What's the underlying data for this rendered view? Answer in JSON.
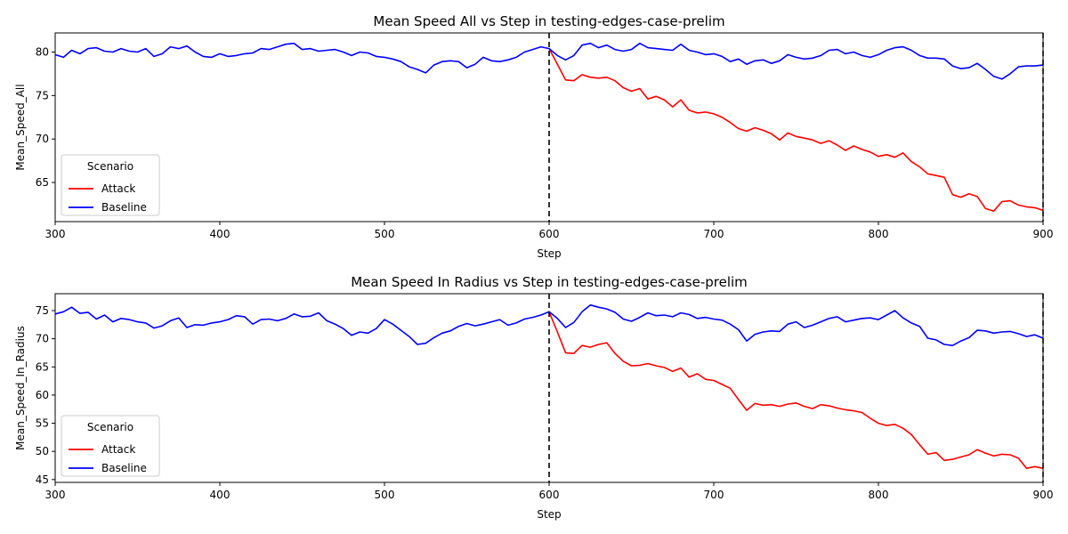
{
  "chart_data": [
    {
      "type": "line",
      "title": "Mean Speed All vs Step in testing-edges-case-prelim",
      "xlabel": "Step",
      "ylabel": "Mean_Speed_All",
      "xlim": [
        300,
        900
      ],
      "ylim": [
        60.5,
        82.2
      ],
      "xticks": [
        300,
        400,
        500,
        600,
        700,
        800,
        900
      ],
      "yticks": [
        65,
        70,
        75,
        80
      ],
      "vlines": [
        600,
        900
      ],
      "legend": {
        "title": "Scenario",
        "placement": "lower-left"
      },
      "series": [
        {
          "name": "Attack",
          "color": "#ff0000",
          "x": [
            600,
            605,
            610,
            615,
            620,
            625,
            630,
            635,
            640,
            645,
            650,
            655,
            660,
            665,
            670,
            675,
            680,
            685,
            690,
            695,
            700,
            705,
            710,
            715,
            720,
            725,
            730,
            735,
            740,
            745,
            750,
            755,
            760,
            765,
            770,
            775,
            780,
            785,
            790,
            795,
            800,
            805,
            810,
            815,
            820,
            825,
            830,
            835,
            840,
            845,
            850,
            855,
            860,
            865,
            870,
            875,
            880,
            885,
            890,
            895,
            900
          ],
          "values": [
            80.4,
            78.6,
            76.8,
            76.7,
            77.4,
            77.1,
            77.0,
            77.1,
            76.7,
            75.9,
            75.5,
            75.8,
            74.6,
            74.9,
            74.5,
            73.7,
            74.5,
            73.3,
            73.0,
            73.1,
            72.9,
            72.5,
            71.9,
            71.2,
            70.9,
            71.3,
            71.0,
            70.6,
            69.9,
            70.7,
            70.3,
            70.1,
            69.9,
            69.5,
            69.8,
            69.3,
            68.7,
            69.2,
            68.8,
            68.5,
            68.0,
            68.2,
            67.9,
            68.4,
            67.4,
            66.8,
            66.0,
            65.8,
            65.6,
            63.6,
            63.3,
            63.7,
            63.4,
            62.0,
            61.7,
            62.8,
            62.9,
            62.4,
            62.2,
            62.1,
            61.8
          ]
        },
        {
          "name": "Baseline",
          "color": "#0000ff",
          "x": [
            300,
            305,
            310,
            315,
            320,
            325,
            330,
            335,
            340,
            345,
            350,
            355,
            360,
            365,
            370,
            375,
            380,
            385,
            390,
            395,
            400,
            405,
            410,
            415,
            420,
            425,
            430,
            435,
            440,
            445,
            450,
            455,
            460,
            465,
            470,
            475,
            480,
            485,
            490,
            495,
            500,
            505,
            510,
            515,
            520,
            525,
            530,
            535,
            540,
            545,
            550,
            555,
            560,
            565,
            570,
            575,
            580,
            585,
            590,
            595,
            600,
            605,
            610,
            615,
            620,
            625,
            630,
            635,
            640,
            645,
            650,
            655,
            660,
            665,
            670,
            675,
            680,
            685,
            690,
            695,
            700,
            705,
            710,
            715,
            720,
            725,
            730,
            735,
            740,
            745,
            750,
            755,
            760,
            765,
            770,
            775,
            780,
            785,
            790,
            795,
            800,
            805,
            810,
            815,
            820,
            825,
            830,
            835,
            840,
            845,
            850,
            855,
            860,
            865,
            870,
            875,
            880,
            885,
            890,
            895,
            900
          ],
          "values": [
            79.7,
            79.4,
            80.2,
            79.8,
            80.4,
            80.5,
            80.1,
            80.0,
            80.4,
            80.1,
            80.0,
            80.4,
            79.5,
            79.8,
            80.6,
            80.4,
            80.7,
            80.0,
            79.5,
            79.4,
            79.8,
            79.5,
            79.6,
            79.8,
            79.9,
            80.4,
            80.3,
            80.6,
            80.9,
            81.0,
            80.3,
            80.4,
            80.1,
            80.2,
            80.3,
            80.0,
            79.6,
            80.0,
            79.9,
            79.5,
            79.4,
            79.2,
            78.9,
            78.3,
            78.0,
            77.6,
            78.5,
            78.9,
            79.0,
            78.9,
            78.2,
            78.6,
            79.4,
            79.0,
            78.9,
            79.1,
            79.4,
            80.0,
            80.3,
            80.6,
            80.4,
            79.6,
            79.1,
            79.6,
            80.8,
            81.0,
            80.5,
            80.8,
            80.3,
            80.1,
            80.3,
            81.0,
            80.5,
            80.4,
            80.3,
            80.2,
            80.9,
            80.2,
            80.0,
            79.7,
            79.8,
            79.5,
            78.9,
            79.2,
            78.6,
            79.0,
            79.1,
            78.7,
            79.0,
            79.7,
            79.4,
            79.2,
            79.3,
            79.6,
            80.2,
            80.3,
            79.8,
            80.0,
            79.6,
            79.4,
            79.7,
            80.2,
            80.5,
            80.6,
            80.2,
            79.6,
            79.3,
            79.3,
            79.2,
            78.4,
            78.1,
            78.2,
            78.7,
            78.0,
            77.2,
            76.9,
            77.5,
            78.3,
            78.4,
            78.4,
            78.5
          ]
        }
      ]
    },
    {
      "type": "line",
      "title": "Mean Speed In Radius vs Step in testing-edges-case-prelim",
      "xlabel": "Step",
      "ylabel": "Mean_Speed_In_Radius",
      "xlim": [
        300,
        900
      ],
      "ylim": [
        44.5,
        78
      ],
      "xticks": [
        300,
        400,
        500,
        600,
        700,
        800,
        900
      ],
      "yticks": [
        45,
        50,
        55,
        60,
        65,
        70,
        75
      ],
      "vlines": [
        600,
        900
      ],
      "legend": {
        "title": "Scenario",
        "placement": "lower-left"
      },
      "series": [
        {
          "name": "Attack",
          "color": "#ff0000",
          "x": [
            600,
            605,
            610,
            615,
            620,
            625,
            630,
            635,
            640,
            645,
            650,
            655,
            660,
            665,
            670,
            675,
            680,
            685,
            690,
            695,
            700,
            705,
            710,
            715,
            720,
            725,
            730,
            735,
            740,
            745,
            750,
            755,
            760,
            765,
            770,
            775,
            780,
            785,
            790,
            795,
            800,
            805,
            810,
            815,
            820,
            825,
            830,
            835,
            840,
            845,
            850,
            855,
            860,
            865,
            870,
            875,
            880,
            885,
            890,
            895,
            900
          ],
          "values": [
            74.8,
            71.2,
            67.5,
            67.4,
            68.8,
            68.5,
            69.0,
            69.3,
            67.4,
            66.0,
            65.2,
            65.3,
            65.6,
            65.2,
            64.9,
            64.2,
            64.8,
            63.2,
            63.8,
            62.8,
            62.6,
            61.9,
            61.2,
            59.2,
            57.3,
            58.5,
            58.2,
            58.3,
            58.0,
            58.4,
            58.6,
            58.0,
            57.6,
            58.3,
            58.1,
            57.7,
            57.4,
            57.2,
            56.9,
            55.9,
            55.0,
            54.6,
            54.8,
            54.1,
            53.0,
            51.2,
            49.5,
            49.8,
            48.4,
            48.6,
            49.0,
            49.4,
            50.3,
            49.7,
            49.2,
            49.5,
            49.4,
            48.8,
            47.0,
            47.3,
            47.0
          ]
        },
        {
          "name": "Baseline",
          "color": "#0000ff",
          "x": [
            300,
            305,
            310,
            315,
            320,
            325,
            330,
            335,
            340,
            345,
            350,
            355,
            360,
            365,
            370,
            375,
            380,
            385,
            390,
            395,
            400,
            405,
            410,
            415,
            420,
            425,
            430,
            435,
            440,
            445,
            450,
            455,
            460,
            465,
            470,
            475,
            480,
            485,
            490,
            495,
            500,
            505,
            510,
            515,
            520,
            525,
            530,
            535,
            540,
            545,
            550,
            555,
            560,
            565,
            570,
            575,
            580,
            585,
            590,
            595,
            600,
            605,
            610,
            615,
            620,
            625,
            630,
            635,
            640,
            645,
            650,
            655,
            660,
            665,
            670,
            675,
            680,
            685,
            690,
            695,
            700,
            705,
            710,
            715,
            720,
            725,
            730,
            735,
            740,
            745,
            750,
            755,
            760,
            765,
            770,
            775,
            780,
            785,
            790,
            795,
            800,
            805,
            810,
            815,
            820,
            825,
            830,
            835,
            840,
            845,
            850,
            855,
            860,
            865,
            870,
            875,
            880,
            885,
            890,
            895,
            900
          ],
          "values": [
            74.4,
            74.8,
            75.6,
            74.5,
            74.7,
            73.5,
            74.2,
            73.0,
            73.6,
            73.4,
            73.0,
            72.8,
            71.9,
            72.3,
            73.2,
            73.7,
            72.0,
            72.5,
            72.4,
            72.8,
            73.0,
            73.4,
            74.1,
            73.9,
            72.6,
            73.4,
            73.5,
            73.2,
            73.6,
            74.4,
            73.9,
            74.0,
            74.6,
            73.2,
            72.6,
            71.8,
            70.6,
            71.2,
            71.0,
            71.8,
            73.4,
            72.6,
            71.5,
            70.4,
            69.0,
            69.2,
            70.2,
            71.0,
            71.4,
            72.2,
            72.7,
            72.3,
            72.6,
            73.0,
            73.4,
            72.4,
            72.8,
            73.5,
            73.8,
            74.2,
            74.8,
            73.6,
            72.0,
            72.9,
            74.8,
            76.0,
            75.6,
            75.3,
            74.7,
            73.5,
            73.1,
            73.8,
            74.6,
            74.1,
            74.2,
            73.9,
            74.6,
            74.3,
            73.6,
            73.8,
            73.5,
            73.3,
            72.6,
            71.6,
            69.6,
            70.8,
            71.2,
            71.4,
            71.3,
            72.6,
            73.0,
            72.0,
            72.4,
            73.0,
            73.6,
            73.9,
            73.0,
            73.3,
            73.6,
            73.7,
            73.4,
            74.2,
            75.0,
            73.7,
            72.8,
            72.2,
            70.1,
            69.8,
            69.0,
            68.8,
            69.6,
            70.2,
            71.5,
            71.4,
            71.0,
            71.2,
            71.3,
            70.9,
            70.4,
            70.7,
            70.1
          ]
        }
      ]
    }
  ]
}
